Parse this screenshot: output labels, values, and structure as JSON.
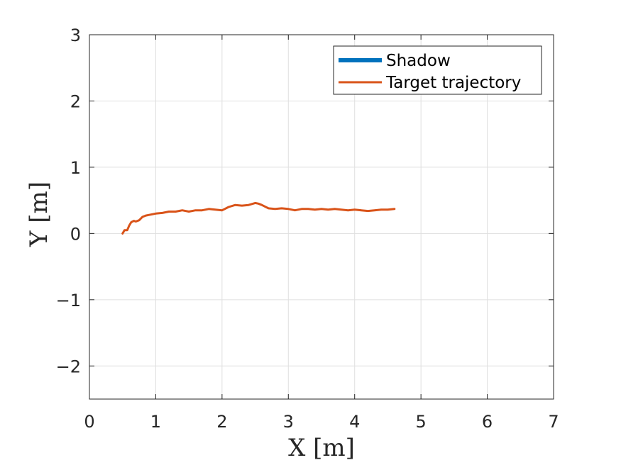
{
  "chart_data": {
    "type": "line",
    "title": "",
    "xlabel": "X [m]",
    "ylabel": "Y [m]",
    "xlim": [
      0,
      7
    ],
    "ylim": [
      -2.5,
      3
    ],
    "xticks": [
      0,
      1,
      2,
      3,
      4,
      5,
      6,
      7
    ],
    "yticks": [
      -2,
      -1,
      0,
      1,
      2,
      3
    ],
    "xtick_labels": [
      "0",
      "1",
      "2",
      "3",
      "4",
      "5",
      "6",
      "7"
    ],
    "ytick_labels": [
      "−2",
      "−1",
      "0",
      "1",
      "2",
      "3"
    ],
    "grid": true,
    "legend_position": "top-right",
    "series": [
      {
        "name": "Shadow",
        "color": "#0072BD",
        "x": [],
        "y": []
      },
      {
        "name": "Target trajectory",
        "color": "#D95319",
        "x": [
          0.5,
          0.53,
          0.57,
          0.6,
          0.63,
          0.67,
          0.7,
          0.75,
          0.8,
          0.85,
          0.9,
          1.0,
          1.1,
          1.2,
          1.3,
          1.4,
          1.5,
          1.6,
          1.7,
          1.8,
          1.9,
          2.0,
          2.1,
          2.2,
          2.3,
          2.4,
          2.5,
          2.55,
          2.6,
          2.7,
          2.8,
          2.9,
          3.0,
          3.1,
          3.2,
          3.3,
          3.4,
          3.5,
          3.6,
          3.7,
          3.8,
          3.9,
          4.0,
          4.1,
          4.2,
          4.3,
          4.4,
          4.5,
          4.6
        ],
        "y": [
          0.0,
          0.05,
          0.05,
          0.12,
          0.17,
          0.19,
          0.18,
          0.2,
          0.25,
          0.27,
          0.28,
          0.3,
          0.31,
          0.33,
          0.33,
          0.35,
          0.33,
          0.35,
          0.35,
          0.37,
          0.36,
          0.35,
          0.4,
          0.43,
          0.42,
          0.43,
          0.46,
          0.45,
          0.43,
          0.38,
          0.37,
          0.38,
          0.37,
          0.35,
          0.37,
          0.37,
          0.36,
          0.37,
          0.36,
          0.37,
          0.36,
          0.35,
          0.36,
          0.35,
          0.34,
          0.35,
          0.36,
          0.36,
          0.37
        ]
      }
    ]
  }
}
